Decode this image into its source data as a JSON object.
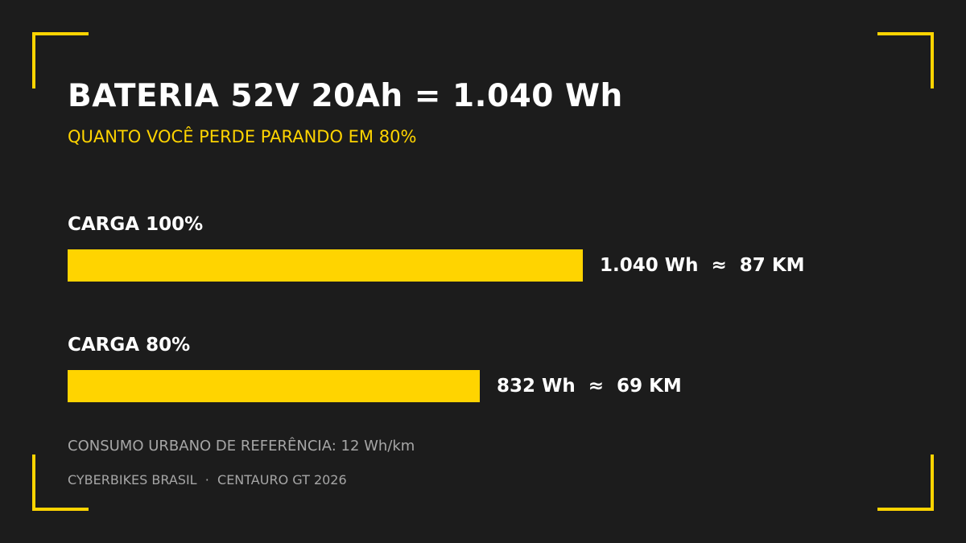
{
  "header": {
    "title": "BATERIA 52V 20Ah = 1.040 Wh",
    "subtitle": "QUANTO VOCÊ PERDE PARANDO EM 80%"
  },
  "chart_data": {
    "type": "bar",
    "orientation": "horizontal",
    "categories": [
      "CARGA 100%",
      "CARGA 80%"
    ],
    "values": [
      1040,
      832
    ],
    "units": "Wh",
    "value_labels": [
      "1.040 Wh  ≈  87 KM",
      "832 Wh  ≈  69 KM"
    ],
    "range_km": [
      87,
      69
    ],
    "xlim": [
      0,
      1040
    ],
    "grid": false,
    "bar_color": "#ffd400"
  },
  "note": "CONSUMO URBANO DE REFERÊNCIA: 12 Wh/km",
  "footer": "CYBERBIKES BRASIL  ·  CENTAURO GT 2026",
  "colors": {
    "background": "#1c1c1c",
    "accent": "#ffd400",
    "text": "#ffffff",
    "muted": "#a6a6a6"
  }
}
